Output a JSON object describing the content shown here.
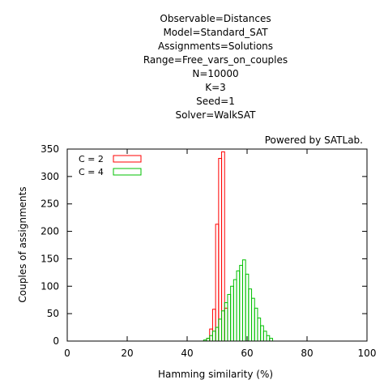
{
  "chart_data": {
    "type": "bar",
    "title_lines": [
      "Observable=Distances",
      "Model=Standard_SAT",
      "Assignments=Solutions",
      "Range=Free_vars_on_couples",
      "N=10000",
      "K=3",
      "Seed=1",
      "Solver=WalkSAT"
    ],
    "credit": "Powered by SATLab.",
    "xlabel": "Hamming similarity (%)",
    "ylabel": "Couples of assignments",
    "xlim": [
      0,
      100
    ],
    "ylim": [
      0,
      350
    ],
    "xticks": [
      0,
      20,
      40,
      60,
      80,
      100
    ],
    "yticks": [
      0,
      50,
      100,
      150,
      200,
      250,
      300,
      350
    ],
    "bin_width": 1,
    "grid": false,
    "legend_position": "top-left",
    "series": [
      {
        "name": "C = 2",
        "color": "#ff0000",
        "x": [
          47,
          48,
          49,
          50,
          51,
          52,
          53
        ],
        "values": [
          5,
          22,
          58,
          213,
          333,
          345,
          60
        ]
      },
      {
        "name": "C = 4",
        "color": "#00c000",
        "x": [
          46,
          47,
          48,
          49,
          50,
          51,
          52,
          53,
          54,
          55,
          56,
          57,
          58,
          59,
          60,
          61,
          62,
          63,
          64,
          65,
          66,
          67,
          68
        ],
        "values": [
          2,
          5,
          10,
          18,
          25,
          40,
          55,
          70,
          85,
          100,
          112,
          128,
          138,
          148,
          122,
          95,
          78,
          60,
          42,
          28,
          18,
          10,
          5
        ]
      }
    ]
  }
}
